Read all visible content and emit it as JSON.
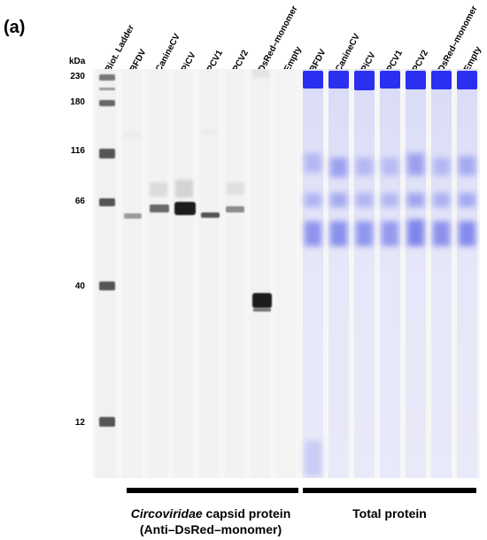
{
  "panel_label": "(a)",
  "kda_title": "kDa",
  "kda_ticks": [
    {
      "label": "230"
    },
    {
      "label": "180"
    },
    {
      "label": "116"
    },
    {
      "label": "66"
    },
    {
      "label": "40"
    },
    {
      "label": "12"
    }
  ],
  "lanes": [
    "Biot. Ladder",
    "BFDV",
    "CanineCV",
    "PiCV",
    "PCV1",
    "PCV2",
    "DsRed–monomer",
    "Empty",
    "BFDV",
    "CanineCV",
    "PiCV",
    "PCV1",
    "PCV2",
    "DsRed–monomer",
    "Empty"
  ],
  "captions": {
    "left_italic": "Circoviridae",
    "left_rest": " capsid protein",
    "left_line2": "(Anti–DsRed–monomer)",
    "right": "Total protein"
  },
  "colors": {
    "western_band": "#1a1a1a",
    "total_protein_band": "#2a2ff0",
    "background": "#f6f6f6"
  }
}
